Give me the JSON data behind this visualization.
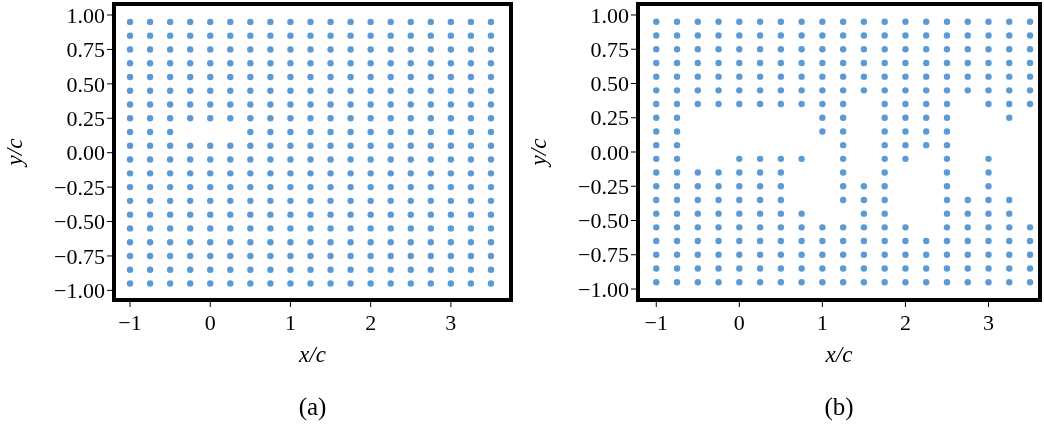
{
  "chart_data": [
    {
      "type": "scatter",
      "title": "(a)",
      "xlabel": "x/c",
      "ylabel": "y/c",
      "marker": "circle",
      "xlim": [
        -1.2,
        3.75
      ],
      "ylim": [
        -1.07,
        1.08
      ],
      "xticks": [
        {
          "value": -1,
          "label": "−1"
        },
        0,
        1,
        2,
        3
      ],
      "yticks": [
        {
          "value": -1,
          "label": "−1.00"
        },
        {
          "value": -0.75,
          "label": "−0.75"
        },
        {
          "value": -0.5,
          "label": "−0.50"
        },
        {
          "value": -0.25,
          "label": "−0.25"
        },
        {
          "value": 0,
          "label": "0.00"
        },
        {
          "value": 0.25,
          "label": "0.25"
        },
        {
          "value": 0.5,
          "label": "0.50"
        },
        {
          "value": 0.75,
          "label": "0.75"
        },
        {
          "value": 1,
          "label": "1.00"
        }
      ],
      "series": [
        {
          "color": "#5b9bd5",
          "x": [
            -1,
            -0.75,
            -0.5,
            -0.25,
            0,
            0.25,
            0.5,
            0.75,
            1,
            1.25,
            1.5,
            1.75,
            2,
            2.25,
            2.5,
            2.75,
            3,
            3.25,
            3.5,
            -1,
            -0.75,
            -0.5,
            -0.25,
            0,
            0.25,
            0.5,
            0.75,
            1,
            1.25,
            1.5,
            1.75,
            2,
            2.25,
            2.5,
            2.75,
            3,
            3.25,
            3.5,
            -1,
            -0.75,
            -0.5,
            -0.25,
            0,
            0.25,
            0.5,
            0.75,
            1,
            1.25,
            1.5,
            1.75,
            2,
            2.25,
            2.5,
            2.75,
            3,
            3.25,
            3.5,
            -1,
            -0.75,
            -0.5,
            -0.25,
            0,
            0.25,
            0.5,
            0.75,
            1,
            1.25,
            1.5,
            1.75,
            2,
            2.25,
            2.5,
            2.75,
            3,
            3.25,
            3.5,
            -1,
            -0.75,
            -0.5,
            -0.25,
            0,
            0.25,
            0.5,
            0.75,
            1,
            1.25,
            1.5,
            1.75,
            2,
            2.25,
            2.5,
            2.75,
            3,
            3.25,
            3.5,
            -1,
            -0.75,
            -0.5,
            -0.25,
            0,
            0.25,
            0.5,
            0.75,
            1,
            1.25,
            1.5,
            1.75,
            2,
            2.25,
            2.5,
            2.75,
            3,
            3.25,
            3.5,
            -1,
            -0.75,
            -0.5,
            -0.25,
            0,
            0.25,
            0.5,
            0.75,
            1,
            1.25,
            1.5,
            1.75,
            2,
            2.25,
            2.5,
            2.75,
            3,
            3.25,
            3.5,
            -1,
            -0.75,
            -0.5,
            -0.25,
            0,
            0.25,
            0.5,
            0.75,
            1,
            1.25,
            1.5,
            1.75,
            2,
            2.25,
            2.5,
            2.75,
            3,
            3.25,
            3.5,
            -1,
            -0.75,
            -0.5,
            0.5,
            0.75,
            1,
            1.25,
            1.5,
            1.75,
            2,
            2.25,
            2.5,
            2.75,
            3,
            3.25,
            3.5,
            -1,
            -0.75,
            -0.5,
            -0.25,
            0,
            0.25,
            0.5,
            0.75,
            1,
            1.25,
            1.5,
            1.75,
            2,
            2.25,
            2.5,
            2.75,
            3,
            3.25,
            3.5,
            -1,
            -0.75,
            -0.5,
            -0.25,
            0,
            0.25,
            0.5,
            0.75,
            1,
            1.25,
            1.5,
            1.75,
            2,
            2.25,
            2.5,
            2.75,
            3,
            3.25,
            3.5,
            -1,
            -0.75,
            -0.5,
            -0.25,
            0,
            0.25,
            0.5,
            0.75,
            1,
            1.25,
            1.5,
            1.75,
            2,
            2.25,
            2.5,
            2.75,
            3,
            3.25,
            3.5,
            -1,
            -0.75,
            -0.5,
            -0.25,
            0,
            0.25,
            0.5,
            0.75,
            1,
            1.25,
            1.5,
            1.75,
            2,
            2.25,
            2.5,
            2.75,
            3,
            3.25,
            3.5,
            -1,
            -0.75,
            -0.5,
            -0.25,
            0,
            0.25,
            0.5,
            0.75,
            1,
            1.25,
            1.5,
            1.75,
            2,
            2.25,
            2.5,
            2.75,
            3,
            3.25,
            3.5,
            -1,
            -0.75,
            -0.5,
            -0.25,
            0,
            0.25,
            0.5,
            0.75,
            1,
            1.25,
            1.5,
            1.75,
            2,
            2.25,
            2.5,
            2.75,
            3,
            3.25,
            3.5,
            -1,
            -0.75,
            -0.5,
            -0.25,
            0,
            0.25,
            0.5,
            0.75,
            1,
            1.25,
            1.5,
            1.75,
            2,
            2.25,
            2.5,
            2.75,
            3,
            3.25,
            3.5,
            -1,
            -0.75,
            -0.5,
            -0.25,
            0,
            0.25,
            0.5,
            0.75,
            1,
            1.25,
            1.5,
            1.75,
            2,
            2.25,
            2.5,
            2.75,
            3,
            3.25,
            3.5,
            -1,
            -0.75,
            -0.5,
            -0.25,
            0,
            0.25,
            0.5,
            0.75,
            1,
            1.25,
            1.5,
            1.75,
            2,
            2.25,
            2.5,
            2.75,
            3,
            3.25,
            3.5,
            -1,
            -0.75,
            -0.5,
            -0.25,
            0,
            0.25,
            0.5,
            0.75,
            1,
            1.25,
            1.5,
            1.75,
            2,
            2.25,
            2.5,
            2.75,
            3,
            3.25,
            3.5,
            -1,
            -0.75,
            -0.5,
            -0.25,
            0,
            0.25,
            0.5,
            0.75,
            1,
            1.25,
            1.5,
            1.75,
            2,
            2.25,
            2.5,
            2.75,
            3,
            3.25,
            3.5
          ],
          "values": [
            0.95,
            0.95,
            0.95,
            0.95,
            0.95,
            0.95,
            0.95,
            0.95,
            0.95,
            0.95,
            0.95,
            0.95,
            0.95,
            0.95,
            0.95,
            0.95,
            0.95,
            0.95,
            0.95,
            0.85,
            0.85,
            0.85,
            0.85,
            0.85,
            0.85,
            0.85,
            0.85,
            0.85,
            0.85,
            0.85,
            0.85,
            0.85,
            0.85,
            0.85,
            0.85,
            0.85,
            0.85,
            0.85,
            0.75,
            0.75,
            0.75,
            0.75,
            0.75,
            0.75,
            0.75,
            0.75,
            0.75,
            0.75,
            0.75,
            0.75,
            0.75,
            0.75,
            0.75,
            0.75,
            0.75,
            0.75,
            0.75,
            0.65,
            0.65,
            0.65,
            0.65,
            0.65,
            0.65,
            0.65,
            0.65,
            0.65,
            0.65,
            0.65,
            0.65,
            0.65,
            0.65,
            0.65,
            0.65,
            0.65,
            0.65,
            0.65,
            0.55,
            0.55,
            0.55,
            0.55,
            0.55,
            0.55,
            0.55,
            0.55,
            0.55,
            0.55,
            0.55,
            0.55,
            0.55,
            0.55,
            0.55,
            0.55,
            0.55,
            0.55,
            0.55,
            0.45,
            0.45,
            0.45,
            0.45,
            0.45,
            0.45,
            0.45,
            0.45,
            0.45,
            0.45,
            0.45,
            0.45,
            0.45,
            0.45,
            0.45,
            0.45,
            0.45,
            0.45,
            0.45,
            0.35,
            0.35,
            0.35,
            0.35,
            0.35,
            0.35,
            0.35,
            0.35,
            0.35,
            0.35,
            0.35,
            0.35,
            0.35,
            0.35,
            0.35,
            0.35,
            0.35,
            0.35,
            0.35,
            0.25,
            0.25,
            0.25,
            0.25,
            0.25,
            0.25,
            0.25,
            0.25,
            0.25,
            0.25,
            0.25,
            0.25,
            0.25,
            0.25,
            0.25,
            0.25,
            0.25,
            0.25,
            0.25,
            0.15,
            0.15,
            0.15,
            0.15,
            0.15,
            0.15,
            0.15,
            0.15,
            0.15,
            0.15,
            0.15,
            0.15,
            0.15,
            0.15,
            0.15,
            0.15,
            0.05,
            0.05,
            0.05,
            0.05,
            0.05,
            0.05,
            0.05,
            0.05,
            0.05,
            0.05,
            0.05,
            0.05,
            0.05,
            0.05,
            0.05,
            0.05,
            0.05,
            0.05,
            0.05,
            -0.05,
            -0.05,
            -0.05,
            -0.05,
            -0.05,
            -0.05,
            -0.05,
            -0.05,
            -0.05,
            -0.05,
            -0.05,
            -0.05,
            -0.05,
            -0.05,
            -0.05,
            -0.05,
            -0.05,
            -0.05,
            -0.05,
            -0.15,
            -0.15,
            -0.15,
            -0.15,
            -0.15,
            -0.15,
            -0.15,
            -0.15,
            -0.15,
            -0.15,
            -0.15,
            -0.15,
            -0.15,
            -0.15,
            -0.15,
            -0.15,
            -0.15,
            -0.15,
            -0.15,
            -0.25,
            -0.25,
            -0.25,
            -0.25,
            -0.25,
            -0.25,
            -0.25,
            -0.25,
            -0.25,
            -0.25,
            -0.25,
            -0.25,
            -0.25,
            -0.25,
            -0.25,
            -0.25,
            -0.25,
            -0.25,
            -0.25,
            -0.35,
            -0.35,
            -0.35,
            -0.35,
            -0.35,
            -0.35,
            -0.35,
            -0.35,
            -0.35,
            -0.35,
            -0.35,
            -0.35,
            -0.35,
            -0.35,
            -0.35,
            -0.35,
            -0.35,
            -0.35,
            -0.35,
            -0.45,
            -0.45,
            -0.45,
            -0.45,
            -0.45,
            -0.45,
            -0.45,
            -0.45,
            -0.45,
            -0.45,
            -0.45,
            -0.45,
            -0.45,
            -0.45,
            -0.45,
            -0.45,
            -0.45,
            -0.45,
            -0.45,
            -0.55,
            -0.55,
            -0.55,
            -0.55,
            -0.55,
            -0.55,
            -0.55,
            -0.55,
            -0.55,
            -0.55,
            -0.55,
            -0.55,
            -0.55,
            -0.55,
            -0.55,
            -0.55,
            -0.55,
            -0.55,
            -0.55,
            -0.65,
            -0.65,
            -0.65,
            -0.65,
            -0.65,
            -0.65,
            -0.65,
            -0.65,
            -0.65,
            -0.65,
            -0.65,
            -0.65,
            -0.65,
            -0.65,
            -0.65,
            -0.65,
            -0.65,
            -0.65,
            -0.65,
            -0.75,
            -0.75,
            -0.75,
            -0.75,
            -0.75,
            -0.75,
            -0.75,
            -0.75,
            -0.75,
            -0.75,
            -0.75,
            -0.75,
            -0.75,
            -0.75,
            -0.75,
            -0.75,
            -0.75,
            -0.75,
            -0.75,
            -0.85,
            -0.85,
            -0.85,
            -0.85,
            -0.85,
            -0.85,
            -0.85,
            -0.85,
            -0.85,
            -0.85,
            -0.85,
            -0.85,
            -0.85,
            -0.85,
            -0.85,
            -0.85,
            -0.85,
            -0.85,
            -0.85,
            -0.95,
            -0.95,
            -0.95,
            -0.95,
            -0.95,
            -0.95,
            -0.95,
            -0.95,
            -0.95,
            -0.95,
            -0.95,
            -0.95,
            -0.95,
            -0.95,
            -0.95,
            -0.95,
            -0.95,
            -0.95,
            -0.95
          ]
        }
      ]
    },
    {
      "type": "scatter",
      "title": "(b)",
      "xlabel": "x/c",
      "ylabel": "y/c",
      "marker": "circle",
      "xlim": [
        -1.22,
        3.62
      ],
      "ylim": [
        -1.08,
        1.08
      ],
      "xticks": [
        {
          "value": -1,
          "label": "−1"
        },
        0,
        1,
        2,
        3
      ],
      "yticks": [
        {
          "value": -1,
          "label": "−1.00"
        },
        {
          "value": -0.75,
          "label": "−0.75"
        },
        {
          "value": -0.5,
          "label": "−0.50"
        },
        {
          "value": -0.25,
          "label": "−0.25"
        },
        {
          "value": 0,
          "label": "0.00"
        },
        {
          "value": 0.25,
          "label": "0.25"
        },
        {
          "value": 0.5,
          "label": "0.50"
        },
        {
          "value": 0.75,
          "label": "0.75"
        },
        {
          "value": 1,
          "label": "1.00"
        }
      ],
      "series": [
        {
          "color": "#5b9bd5",
          "x": [
            -1,
            -0.75,
            -0.5,
            -0.25,
            0,
            0.25,
            0.5,
            0.75,
            1,
            1.25,
            1.5,
            1.75,
            2,
            2.25,
            2.5,
            2.75,
            3,
            3.25,
            3.5,
            -1,
            -0.75,
            -0.5,
            -0.25,
            0,
            0.25,
            0.5,
            0.75,
            1,
            1.25,
            1.5,
            1.75,
            2,
            2.25,
            2.5,
            2.75,
            3,
            3.25,
            3.5,
            -1,
            -0.75,
            -0.5,
            -0.25,
            0,
            0.25,
            0.5,
            0.75,
            1,
            1.25,
            1.5,
            1.75,
            2,
            2.25,
            2.5,
            2.75,
            3,
            3.25,
            3.5,
            -1,
            -0.75,
            -0.5,
            -0.25,
            0,
            0.25,
            0.5,
            0.75,
            1,
            1.25,
            1.5,
            1.75,
            2,
            2.25,
            2.5,
            2.75,
            3,
            3.25,
            3.5,
            -1,
            -0.75,
            -0.5,
            -0.25,
            0,
            0.25,
            0.5,
            0.75,
            1,
            1.25,
            1.5,
            1.75,
            2,
            2.25,
            2.5,
            2.75,
            3,
            3.25,
            3.5,
            -1,
            -0.75,
            -0.5,
            -0.25,
            0,
            0.25,
            0.5,
            0.75,
            1,
            1.25,
            1.5,
            1.75,
            2,
            2.25,
            2.5,
            2.75,
            3,
            3.25,
            3.5,
            -1,
            -0.75,
            -0.5,
            -0.25,
            0,
            0.25,
            0.5,
            0.75,
            1,
            1.25,
            1.75,
            2,
            2.25,
            2.5,
            3,
            3.25,
            3.5,
            -1,
            -0.75,
            1,
            1.25,
            1.75,
            2,
            2.25,
            2.5,
            3.25,
            -1,
            -0.75,
            1,
            1.25,
            1.75,
            2,
            2.25,
            2.5,
            -1,
            -0.75,
            1.25,
            1.75,
            2,
            2.25,
            2.5,
            -1,
            -0.75,
            0,
            0.25,
            0.5,
            0.75,
            1.25,
            1.75,
            2,
            2.5,
            3,
            -1,
            -0.75,
            -0.5,
            -0.25,
            0,
            0.25,
            0.5,
            1.25,
            1.75,
            2.5,
            3,
            -1,
            -0.75,
            -0.5,
            -0.25,
            0,
            0.25,
            0.5,
            1.25,
            1.5,
            1.75,
            2.5,
            3,
            -1,
            -0.75,
            -0.5,
            -0.25,
            0,
            0.25,
            0.5,
            1.25,
            1.5,
            1.75,
            2.5,
            2.75,
            3,
            3.25,
            -1,
            -0.75,
            -0.5,
            -0.25,
            0,
            0.25,
            0.5,
            0.75,
            1.5,
            1.75,
            2.5,
            2.75,
            3,
            3.25,
            -1,
            -0.75,
            -0.5,
            -0.25,
            0,
            0.25,
            0.5,
            0.75,
            1,
            1.25,
            1.5,
            1.75,
            2,
            2.5,
            2.75,
            3,
            3.25,
            3.5,
            -1,
            -0.75,
            -0.5,
            -0.25,
            0,
            0.25,
            0.5,
            0.75,
            1,
            1.25,
            1.5,
            1.75,
            2,
            2.25,
            2.5,
            2.75,
            3,
            3.25,
            3.5,
            -1,
            -0.75,
            -0.5,
            -0.25,
            0,
            0.25,
            0.5,
            0.75,
            1,
            1.25,
            1.5,
            1.75,
            2,
            2.25,
            2.5,
            2.75,
            3,
            3.25,
            3.5,
            -1,
            -0.75,
            -0.5,
            -0.25,
            0,
            0.25,
            0.5,
            0.75,
            1,
            1.25,
            1.5,
            1.75,
            2,
            2.25,
            2.5,
            2.75,
            3,
            3.25,
            3.5,
            -1,
            -0.75,
            -0.5,
            -0.25,
            0,
            0.25,
            0.5,
            0.75,
            1,
            1.25,
            1.5,
            1.75,
            2,
            2.25,
            2.5,
            2.75,
            3,
            3.25,
            3.5
          ],
          "values": [
            0.95,
            0.95,
            0.95,
            0.95,
            0.95,
            0.95,
            0.95,
            0.95,
            0.95,
            0.95,
            0.95,
            0.95,
            0.95,
            0.95,
            0.95,
            0.95,
            0.95,
            0.95,
            0.95,
            0.85,
            0.85,
            0.85,
            0.85,
            0.85,
            0.85,
            0.85,
            0.85,
            0.85,
            0.85,
            0.85,
            0.85,
            0.85,
            0.85,
            0.85,
            0.85,
            0.85,
            0.85,
            0.85,
            0.75,
            0.75,
            0.75,
            0.75,
            0.75,
            0.75,
            0.75,
            0.75,
            0.75,
            0.75,
            0.75,
            0.75,
            0.75,
            0.75,
            0.75,
            0.75,
            0.75,
            0.75,
            0.75,
            0.65,
            0.65,
            0.65,
            0.65,
            0.65,
            0.65,
            0.65,
            0.65,
            0.65,
            0.65,
            0.65,
            0.65,
            0.65,
            0.65,
            0.65,
            0.65,
            0.65,
            0.65,
            0.65,
            0.55,
            0.55,
            0.55,
            0.55,
            0.55,
            0.55,
            0.55,
            0.55,
            0.55,
            0.55,
            0.55,
            0.55,
            0.55,
            0.55,
            0.55,
            0.55,
            0.55,
            0.55,
            0.55,
            0.45,
            0.45,
            0.45,
            0.45,
            0.45,
            0.45,
            0.45,
            0.45,
            0.45,
            0.45,
            0.45,
            0.45,
            0.45,
            0.45,
            0.45,
            0.45,
            0.45,
            0.45,
            0.45,
            0.35,
            0.35,
            0.35,
            0.35,
            0.35,
            0.35,
            0.35,
            0.35,
            0.35,
            0.35,
            0.35,
            0.35,
            0.35,
            0.35,
            0.35,
            0.35,
            0.35,
            0.25,
            0.25,
            0.25,
            0.25,
            0.25,
            0.25,
            0.25,
            0.25,
            0.25,
            0.15,
            0.15,
            0.15,
            0.15,
            0.15,
            0.15,
            0.15,
            0.15,
            0.05,
            0.05,
            0.05,
            0.05,
            0.05,
            0.05,
            0.05,
            -0.05,
            -0.05,
            -0.05,
            -0.05,
            -0.05,
            -0.05,
            -0.05,
            -0.05,
            -0.05,
            -0.05,
            -0.05,
            -0.15,
            -0.15,
            -0.15,
            -0.15,
            -0.15,
            -0.15,
            -0.15,
            -0.15,
            -0.15,
            -0.15,
            -0.15,
            -0.25,
            -0.25,
            -0.25,
            -0.25,
            -0.25,
            -0.25,
            -0.25,
            -0.25,
            -0.25,
            -0.25,
            -0.25,
            -0.25,
            -0.35,
            -0.35,
            -0.35,
            -0.35,
            -0.35,
            -0.35,
            -0.35,
            -0.35,
            -0.35,
            -0.35,
            -0.35,
            -0.35,
            -0.35,
            -0.35,
            -0.45,
            -0.45,
            -0.45,
            -0.45,
            -0.45,
            -0.45,
            -0.45,
            -0.45,
            -0.45,
            -0.45,
            -0.45,
            -0.45,
            -0.45,
            -0.45,
            -0.55,
            -0.55,
            -0.55,
            -0.55,
            -0.55,
            -0.55,
            -0.55,
            -0.55,
            -0.55,
            -0.55,
            -0.55,
            -0.55,
            -0.55,
            -0.55,
            -0.55,
            -0.55,
            -0.55,
            -0.55,
            -0.65,
            -0.65,
            -0.65,
            -0.65,
            -0.65,
            -0.65,
            -0.65,
            -0.65,
            -0.65,
            -0.65,
            -0.65,
            -0.65,
            -0.65,
            -0.65,
            -0.65,
            -0.65,
            -0.65,
            -0.65,
            -0.65,
            -0.75,
            -0.75,
            -0.75,
            -0.75,
            -0.75,
            -0.75,
            -0.75,
            -0.75,
            -0.75,
            -0.75,
            -0.75,
            -0.75,
            -0.75,
            -0.75,
            -0.75,
            -0.75,
            -0.75,
            -0.75,
            -0.75,
            -0.85,
            -0.85,
            -0.85,
            -0.85,
            -0.85,
            -0.85,
            -0.85,
            -0.85,
            -0.85,
            -0.85,
            -0.85,
            -0.85,
            -0.85,
            -0.85,
            -0.85,
            -0.85,
            -0.85,
            -0.85,
            -0.85,
            -0.95,
            -0.95,
            -0.95,
            -0.95,
            -0.95,
            -0.95,
            -0.95,
            -0.95,
            -0.95,
            -0.95,
            -0.95,
            -0.95,
            -0.95,
            -0.95,
            -0.95,
            -0.95,
            -0.95,
            -0.95,
            -0.95
          ]
        }
      ]
    }
  ]
}
